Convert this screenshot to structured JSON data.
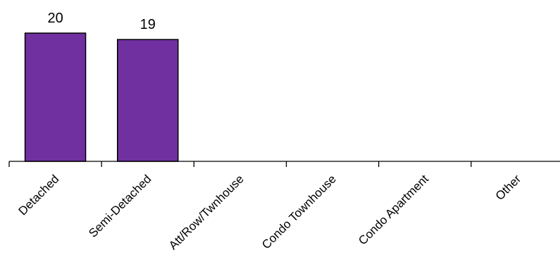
{
  "chart_data": {
    "type": "bar",
    "categories": [
      "Detached",
      "Semi-Detached",
      "Att/Row/Twnhouse",
      "Condo Townhouse",
      "Condo Apartment",
      "Other"
    ],
    "values": [
      20,
      19,
      null,
      null,
      null,
      null
    ],
    "data_labels": [
      "20",
      "19",
      "",
      "",
      "",
      ""
    ],
    "bar_color": "#7030A0",
    "ylim": [
      0,
      20
    ],
    "grid": false,
    "legend": "none",
    "title": "",
    "xlabel": "",
    "ylabel": ""
  }
}
